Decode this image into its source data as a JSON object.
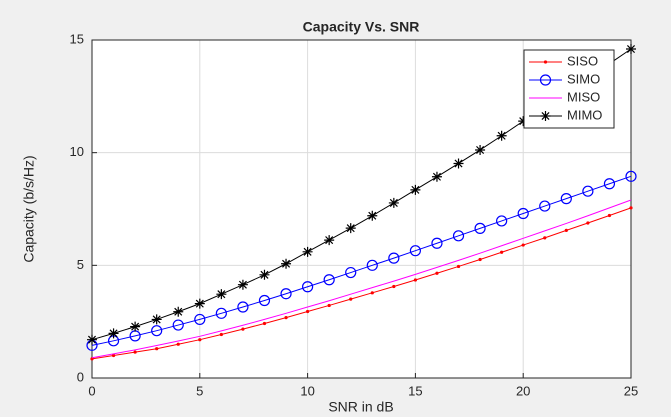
{
  "chart_data": {
    "type": "line",
    "title": "Capacity Vs. SNR",
    "x_label": "SNR in dB",
    "y_label": "Capacity (b/s/Hz)",
    "x": [
      0,
      1,
      2,
      3,
      4,
      5,
      6,
      7,
      8,
      9,
      10,
      11,
      12,
      13,
      14,
      15,
      16,
      17,
      18,
      19,
      20,
      21,
      22,
      23,
      24,
      25
    ],
    "series": [
      {
        "name": "SISO",
        "color": "#ff0000",
        "marker": "dot",
        "values": [
          0.85,
          1.0,
          1.15,
          1.3,
          1.5,
          1.7,
          1.93,
          2.17,
          2.42,
          2.68,
          2.95,
          3.22,
          3.5,
          3.78,
          4.06,
          4.35,
          4.65,
          4.95,
          5.26,
          5.58,
          5.9,
          6.22,
          6.55,
          6.88,
          7.21,
          7.55
        ]
      },
      {
        "name": "SIMO",
        "color": "#0000ff",
        "marker": "circle",
        "values": [
          1.45,
          1.65,
          1.87,
          2.1,
          2.35,
          2.6,
          2.87,
          3.15,
          3.44,
          3.74,
          4.05,
          4.36,
          4.68,
          5.0,
          5.32,
          5.65,
          5.98,
          6.31,
          6.64,
          6.97,
          7.3,
          7.63,
          7.96,
          8.29,
          8.62,
          8.95
        ]
      },
      {
        "name": "MISO",
        "color": "#ff00ff",
        "marker": "none",
        "values": [
          0.9,
          1.07,
          1.25,
          1.44,
          1.64,
          1.85,
          2.09,
          2.34,
          2.6,
          2.87,
          3.15,
          3.43,
          3.72,
          4.01,
          4.3,
          4.6,
          4.91,
          5.22,
          5.54,
          5.87,
          6.2,
          6.53,
          6.86,
          7.2,
          7.55,
          7.9
        ]
      },
      {
        "name": "MIMO",
        "color": "#000000",
        "marker": "asterisk",
        "values": [
          1.7,
          1.98,
          2.28,
          2.6,
          2.94,
          3.3,
          3.72,
          4.14,
          4.58,
          5.07,
          5.6,
          6.12,
          6.65,
          7.2,
          7.77,
          8.35,
          8.93,
          9.52,
          10.12,
          10.75,
          11.4,
          12.03,
          12.66,
          13.3,
          13.95,
          14.6
        ]
      }
    ],
    "xlim": [
      0,
      25
    ],
    "ylim": [
      0,
      15
    ],
    "xticks": [
      0,
      5,
      10,
      15,
      20,
      25
    ],
    "yticks": [
      0,
      5,
      10,
      15
    ],
    "grid": true,
    "legend": "upper right"
  }
}
